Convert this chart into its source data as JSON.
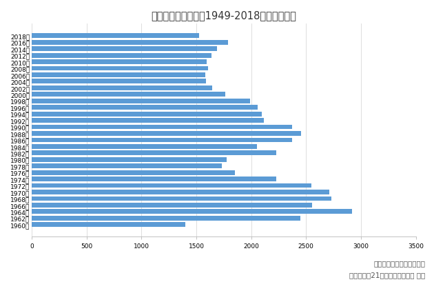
{
  "title": "中国历年出生人口（1949-2018）单位：万人",
  "years": [
    "2018年",
    "2016年",
    "2014年",
    "2012年",
    "2010年",
    "2008年",
    "2006年",
    "2004年",
    "2002年",
    "2000年",
    "1998年",
    "1996年",
    "1994年",
    "1992年",
    "1990年",
    "1988年",
    "1986年",
    "1984年",
    "1982年",
    "1980年",
    "1978年",
    "1976年",
    "1974年",
    "1972年",
    "1970年",
    "1968年",
    "1966年",
    "1964年",
    "1962年",
    "1960年"
  ],
  "values": [
    1523,
    1786,
    1687,
    1635,
    1592,
    1608,
    1584,
    1588,
    1647,
    1765,
    1991,
    2057,
    2098,
    2113,
    2374,
    2455,
    2374,
    2050,
    2230,
    1776,
    1733,
    1849,
    2226,
    2550,
    2710,
    2731,
    2554,
    2921,
    2451,
    1402
  ],
  "bar_color": "#5b9bd5",
  "bg_color": "#ffffff",
  "xlim": [
    0,
    3500
  ],
  "xticks": [
    0,
    500,
    1000,
    1500,
    2000,
    2500,
    3000,
    3500
  ],
  "footer1": "数据来源：国家统计局网站",
  "footer2": "制表制图：21世纪经济报道记者 李振",
  "title_fontsize": 10.5,
  "tick_fontsize": 6.5,
  "footer_fontsize": 7.5
}
